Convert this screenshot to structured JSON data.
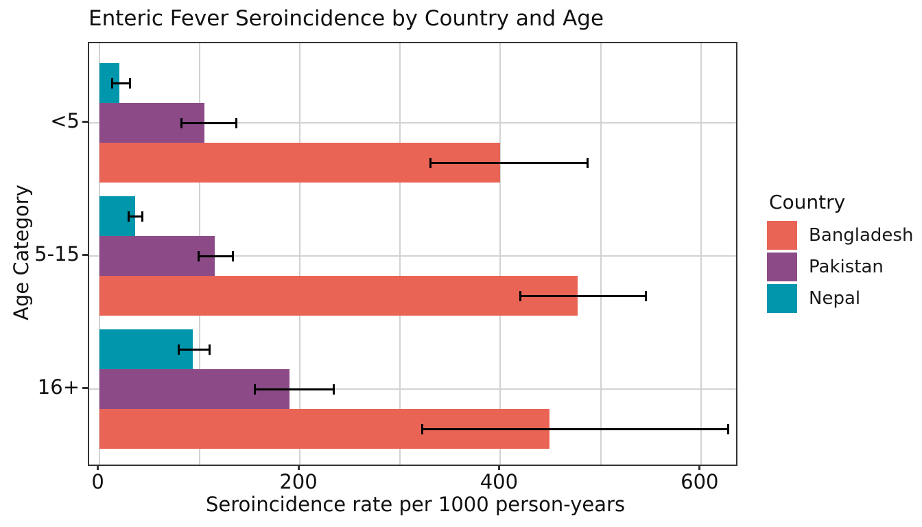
{
  "title": "Enteric Fever Seroincidence by Country and Age",
  "x_axis": {
    "label": "Seroincidence rate per 1000 person-years",
    "ticks": [
      0,
      200,
      400,
      600
    ],
    "gridlines": [
      0,
      100,
      200,
      300,
      400,
      500,
      600
    ],
    "range": [
      -10,
      635
    ]
  },
  "y_axis": {
    "label": "Age Category",
    "categories": [
      "<5",
      "5-15",
      "16+"
    ]
  },
  "legend": {
    "title": "Country",
    "items": [
      {
        "label": "Bangladesh",
        "color": "#EA6455"
      },
      {
        "label": "Pakistan",
        "color": "#8C4B87"
      },
      {
        "label": "Nepal",
        "color": "#0096AB"
      }
    ]
  },
  "colors": {
    "bangladesh": "#EA6455",
    "pakistan": "#8C4B87",
    "nepal": "#0096AB",
    "gridline": "#d2d2d2",
    "panel_border": "#333333",
    "error_bar": "#000000"
  },
  "chart_data": {
    "type": "bar",
    "orientation": "horizontal",
    "title": "Enteric Fever Seroincidence by Country and Age",
    "xlabel": "Seroincidence rate per 1000 person-years",
    "ylabel": "Age Category",
    "categories": [
      "<5",
      "5-15",
      "16+"
    ],
    "series": [
      {
        "name": "Bangladesh",
        "color": "#EA6455",
        "values": [
          400,
          477,
          449
        ],
        "ci_low": [
          330,
          420,
          322
        ],
        "ci_high": [
          487,
          545,
          627
        ]
      },
      {
        "name": "Pakistan",
        "color": "#8C4B87",
        "values": [
          105,
          115,
          190
        ],
        "ci_low": [
          82,
          99,
          155
        ],
        "ci_high": [
          137,
          133,
          234
        ]
      },
      {
        "name": "Nepal",
        "color": "#0096AB",
        "values": [
          20,
          36,
          93
        ],
        "ci_low": [
          13,
          29,
          79
        ],
        "ci_high": [
          31,
          43,
          110
        ]
      }
    ],
    "xlim": [
      -10,
      635
    ],
    "grid": true,
    "error_bars": true,
    "legend_title": "Country",
    "legend_position": "right"
  }
}
